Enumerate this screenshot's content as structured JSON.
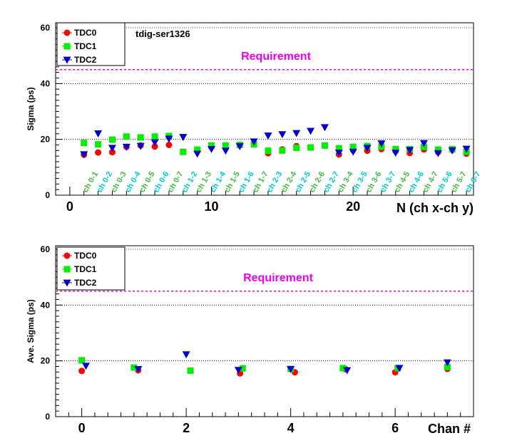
{
  "colors": {
    "TDC0": "#ff0000",
    "TDC1": "#00ee00",
    "TDC2": "#0000cc",
    "requirement": "#ee00ee",
    "label_green": "#44bb44",
    "label_cyan": "#00cccc"
  },
  "chart_data": [
    {
      "type": "scatter",
      "ylabel": "Sigma (ps)",
      "xlabel": "N (ch x-ch y)",
      "xlim": [
        -1,
        28.5
      ],
      "ylim": [
        0,
        60
      ],
      "x_ticks": [
        "0",
        "10",
        "20"
      ],
      "y_ticks": [
        "0",
        "20",
        "40",
        "60"
      ],
      "grid": "horizontal dotted",
      "legend_position": "top-left",
      "tag": "tdig-ser1326",
      "requirement": {
        "label": "Requirement",
        "value": 45
      },
      "categories": [
        "ch 0-1",
        "ch 0-2",
        "ch 0-3",
        "ch 0-4",
        "ch 0-5",
        "ch 0-6",
        "ch 0-7",
        "ch 1-2",
        "ch 1-3",
        "ch 1-4",
        "ch 1-5",
        "ch 1-6",
        "ch 1-7",
        "ch 2-3",
        "ch 2-4",
        "ch 2-5",
        "ch 2-6",
        "ch 2-7",
        "ch 3-4",
        "ch 3-5",
        "ch 3-6",
        "ch 3-7",
        "ch 4-5",
        "ch 4-6",
        "ch 4-7",
        "ch 5-6",
        "ch 5-7",
        "ch 6-7"
      ],
      "series": [
        {
          "name": "TDC0",
          "marker": "circle",
          "x": [
            1,
            2,
            3,
            4,
            5,
            6,
            7,
            13,
            14,
            15,
            16,
            18,
            19,
            20,
            21,
            22,
            23,
            24,
            25,
            26,
            27,
            28
          ],
          "y": [
            14.5,
            15.3,
            15.4,
            17.3,
            17.8,
            17.4,
            18.0,
            18.4,
            15.0,
            16.4,
            17.6,
            17.8,
            14.6,
            16.2,
            15.9,
            16.5,
            15.8,
            15.1,
            16.4,
            15.4,
            16.2,
            14.9
          ]
        },
        {
          "name": "TDC1",
          "marker": "square",
          "x": [
            1,
            2,
            3,
            4,
            5,
            6,
            7,
            8,
            9,
            10,
            11,
            12,
            13,
            14,
            15,
            16,
            17,
            18,
            19,
            20,
            21,
            22,
            23,
            24,
            25,
            26,
            27,
            28
          ],
          "y": [
            18.7,
            18.2,
            19.9,
            21.0,
            20.7,
            21.0,
            21.2,
            15.5,
            16.3,
            17.8,
            17.8,
            18.0,
            18.2,
            15.9,
            16.0,
            17.0,
            17.1,
            17.8,
            16.8,
            17.3,
            17.6,
            17.4,
            16.5,
            16.5,
            17.3,
            16.3,
            16.5,
            15.6
          ]
        },
        {
          "name": "TDC2",
          "marker": "triangle-down",
          "x": [
            1,
            2,
            3,
            4,
            5,
            6,
            7,
            8,
            9,
            10,
            11,
            12,
            13,
            14,
            15,
            16,
            17,
            18,
            19,
            20,
            21,
            22,
            23,
            24,
            25,
            26,
            27,
            28
          ],
          "y": [
            14.6,
            22.1,
            16.9,
            17.3,
            17.6,
            18.9,
            20.2,
            20.8,
            14.8,
            16.5,
            15.9,
            17.5,
            19.2,
            21.3,
            21.8,
            22.2,
            23.0,
            24.3,
            15.2,
            15.5,
            16.9,
            18.5,
            15.2,
            16.1,
            18.6,
            15.0,
            16.0,
            16.6
          ]
        }
      ]
    },
    {
      "type": "scatter",
      "ylabel": "Ave. Sigma (ps)",
      "xlabel": "Chan #",
      "xlim": [
        -0.5,
        7.5
      ],
      "ylim": [
        0,
        60
      ],
      "x_ticks": [
        "0",
        "2",
        "4",
        "6"
      ],
      "y_ticks": [
        "0",
        "20",
        "40",
        "60"
      ],
      "grid": "horizontal dotted",
      "legend_position": "top-left",
      "requirement": {
        "label": "Requirement",
        "value": 45
      },
      "series": [
        {
          "name": "TDC0",
          "marker": "circle",
          "x": [
            0,
            1.08,
            2.08,
            3.03,
            4.08,
            5.05,
            6.0,
            7.0
          ],
          "y": [
            16.4,
            16.6,
            16.5,
            15.5,
            15.9,
            17.0,
            15.9,
            17.1
          ]
        },
        {
          "name": "TDC1",
          "marker": "square",
          "x": [
            0,
            1.0,
            2.08,
            3.08,
            4.0,
            5.0,
            6.05,
            7.0
          ],
          "y": [
            20.2,
            17.6,
            16.5,
            17.3,
            17.1,
            17.4,
            17.4,
            17.8
          ]
        },
        {
          "name": "TDC2",
          "marker": "triangle-down",
          "x": [
            0.08,
            1.08,
            2.0,
            3.0,
            4.0,
            5.08,
            6.08,
            7.0
          ],
          "y": [
            18.2,
            17.0,
            22.3,
            16.7,
            17.0,
            16.6,
            17.4,
            19.4
          ]
        }
      ]
    }
  ]
}
